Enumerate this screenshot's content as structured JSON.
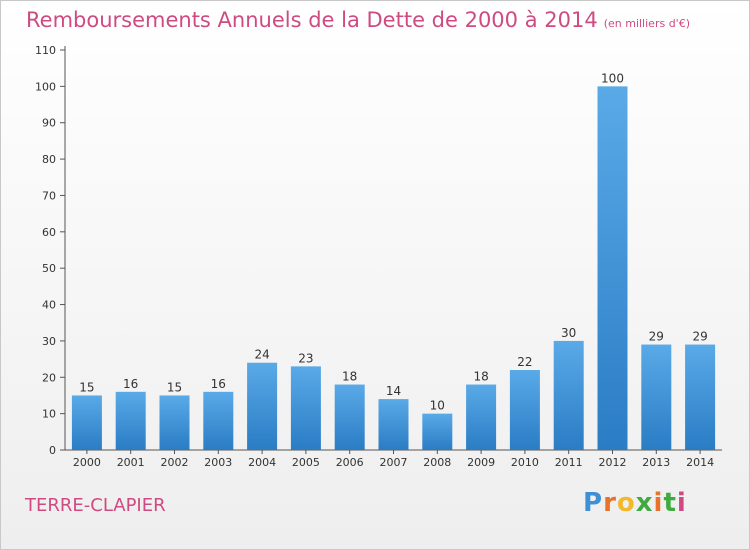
{
  "chart_data": {
    "type": "bar",
    "title": "Remboursements Annuels de la Dette de 2000 à 2014",
    "subtitle": "(en milliers d'€)",
    "categories": [
      "2000",
      "2001",
      "2002",
      "2003",
      "2004",
      "2005",
      "2006",
      "2007",
      "2008",
      "2009",
      "2010",
      "2011",
      "2012",
      "2013",
      "2014"
    ],
    "values": [
      15,
      16,
      15,
      16,
      24,
      23,
      18,
      14,
      10,
      18,
      22,
      30,
      100,
      29,
      29
    ],
    "ylim": [
      0,
      110
    ],
    "yticks": [
      0,
      10,
      20,
      30,
      40,
      50,
      60,
      70,
      80,
      90,
      100,
      110
    ],
    "grid": false,
    "colors": {
      "bar_light": "#5aaae8",
      "bar_dark": "#2a7cc4",
      "title": "#d04a82"
    }
  },
  "footer": {
    "location": "TERRE-CLAPIER",
    "logo": {
      "letters": [
        "P",
        "r",
        "o",
        "x",
        "i",
        "t",
        "i"
      ],
      "colors": [
        "#3d8fd6",
        "#e8722a",
        "#f2b92b",
        "#3faa3f",
        "#e8722a",
        "#3faa3f",
        "#d04a82"
      ]
    }
  }
}
